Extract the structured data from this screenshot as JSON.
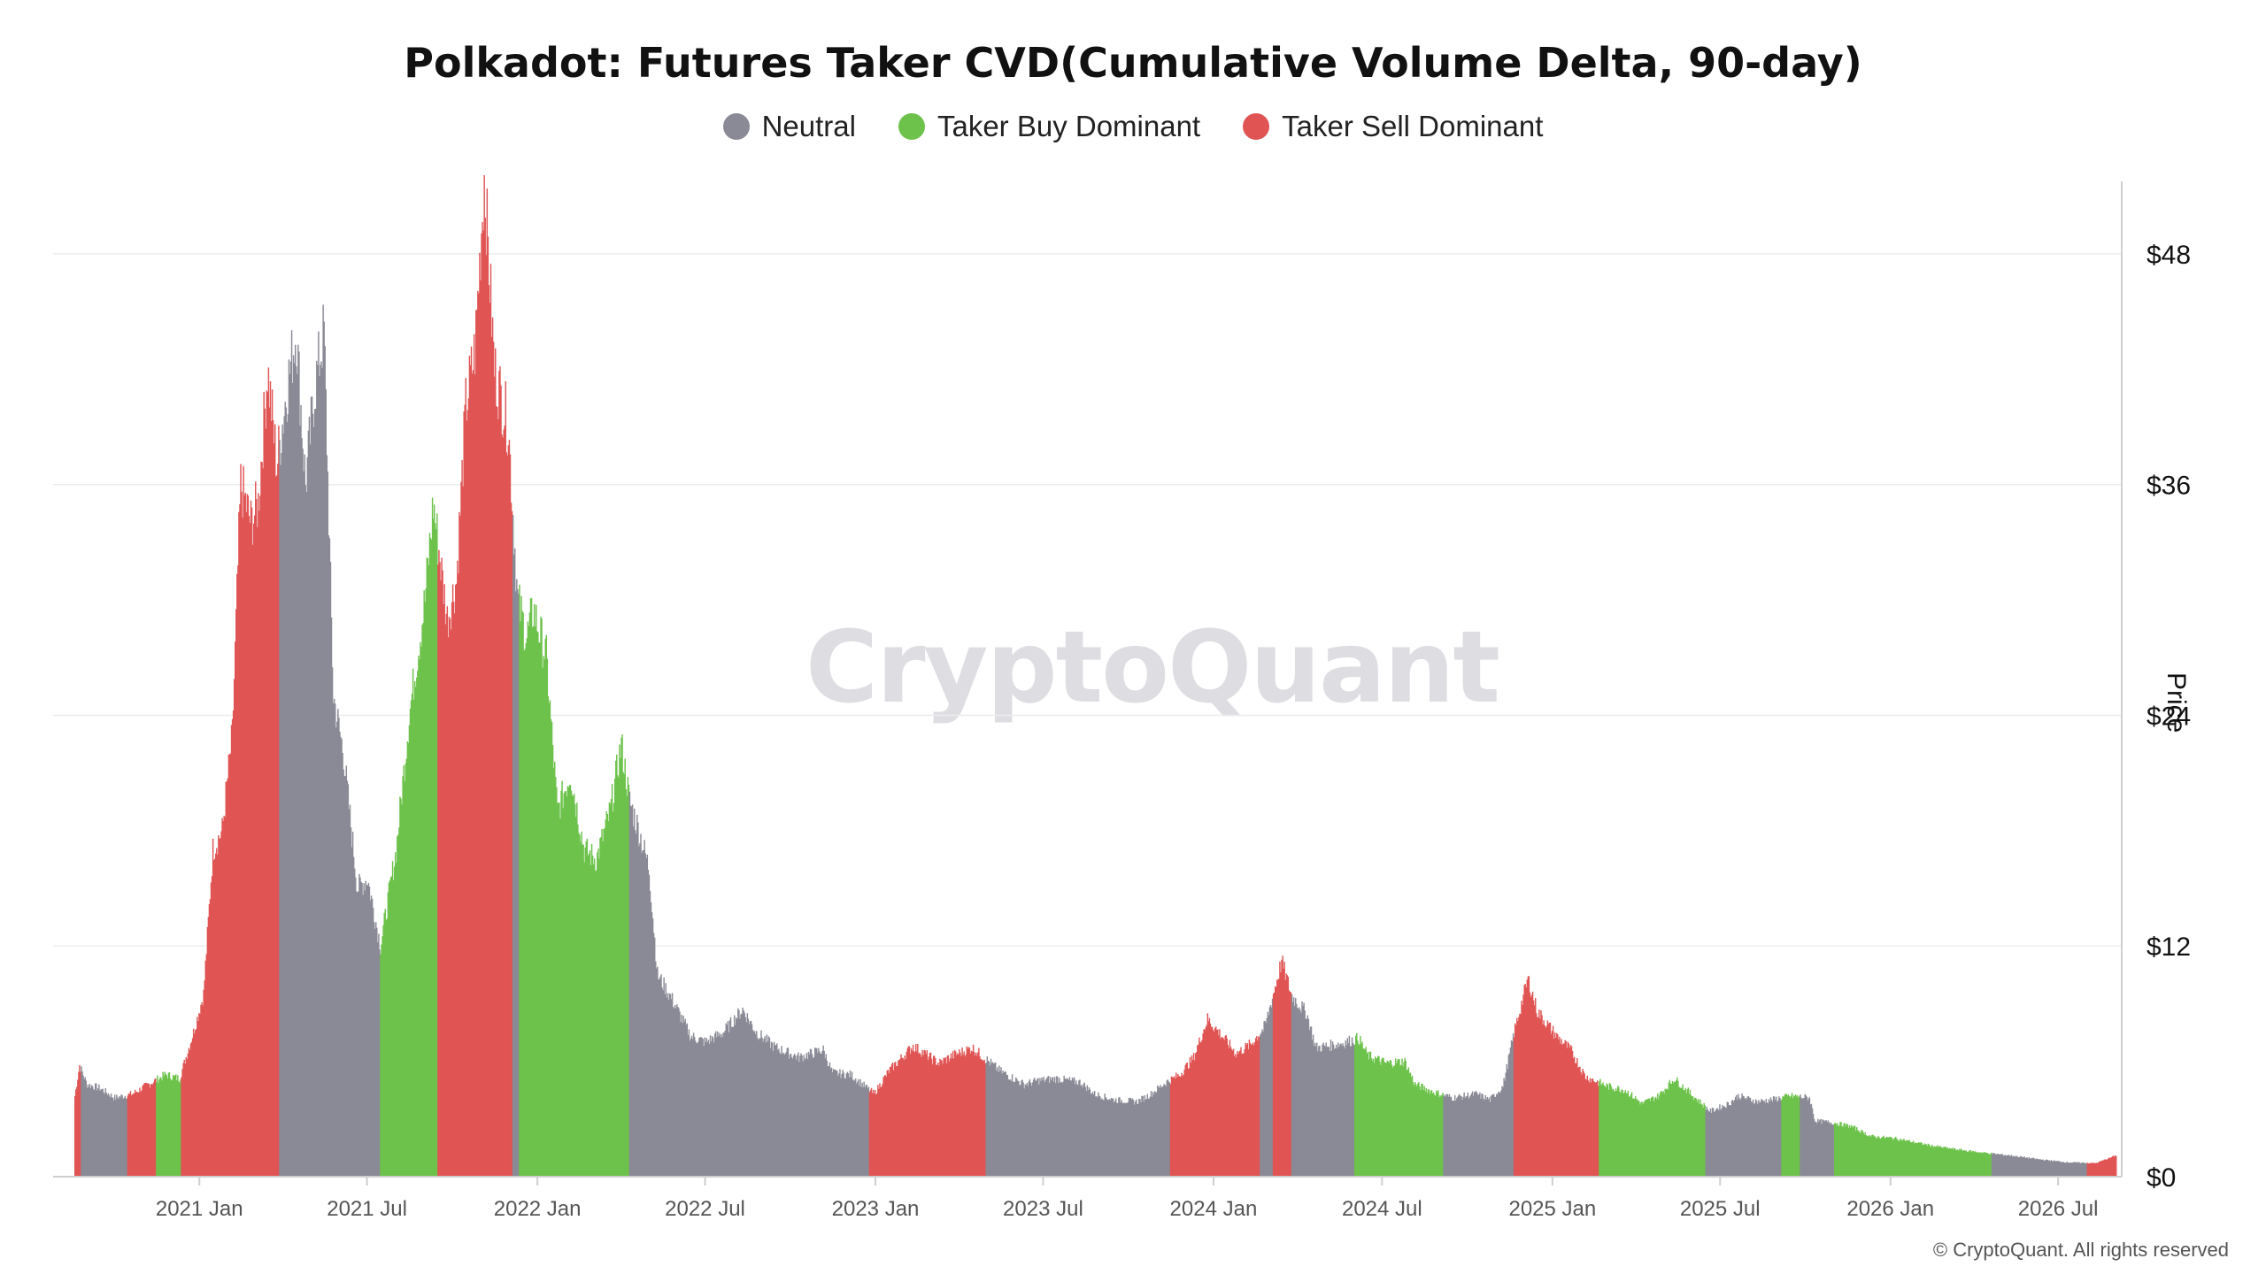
{
  "page": {
    "watermark": "CryptoQuant",
    "copyright": "© CryptoQuant. All rights reserved"
  },
  "legend": [
    {
      "label": "Neutral",
      "color": "#8a8a96"
    },
    {
      "label": "Taker Buy Dominant",
      "color": "#6cc24a"
    },
    {
      "label": "Taker Sell Dominant",
      "color": "#e05454"
    }
  ],
  "chart_data": {
    "type": "bar",
    "title": "Polkadot: Futures Taker CVD(Cumulative Volume Delta, 90-day)",
    "xlabel": "",
    "ylabel": "Price",
    "ylim": [
      0,
      52
    ],
    "yticks": [
      0,
      12,
      24,
      36,
      48
    ],
    "ytick_labels": [
      "$0",
      "$12",
      "$24",
      "$36",
      "$48"
    ],
    "x_range": [
      "2020-08-19",
      "2026-09-01"
    ],
    "xticks": [
      "2021-01-01",
      "2021-07-01",
      "2022-01-01",
      "2022-07-01",
      "2023-01-01",
      "2023-07-01",
      "2024-01-01",
      "2024-07-01",
      "2025-01-01",
      "2025-07-01",
      "2026-01-01",
      "2026-07-01"
    ],
    "xtick_labels": [
      "2021 Jan",
      "2021 Jul",
      "2022 Jan",
      "2022 Jul",
      "2023 Jan",
      "2023 Jul",
      "2024 Jan",
      "2024 Jul",
      "2025 Jan",
      "2025 Jul",
      "2026 Jan",
      "2026 Jul"
    ],
    "grid": true,
    "legend_position": "top-center",
    "series_colors": {
      "neutral": "#8a8a96",
      "buy": "#6cc24a",
      "sell": "#e05454"
    },
    "price_points": [
      [
        "2020-08-19",
        4.2
      ],
      [
        "2020-08-24",
        5.8
      ],
      [
        "2020-09-01",
        4.8
      ],
      [
        "2020-09-15",
        4.6
      ],
      [
        "2020-10-01",
        4.1
      ],
      [
        "2020-10-20",
        4.3
      ],
      [
        "2020-11-10",
        4.9
      ],
      [
        "2020-11-25",
        5.3
      ],
      [
        "2020-12-10",
        5.1
      ],
      [
        "2020-12-25",
        7.5
      ],
      [
        "2021-01-05",
        9.5
      ],
      [
        "2021-01-15",
        17.0
      ],
      [
        "2021-01-25",
        18.0
      ],
      [
        "2021-02-05",
        23.0
      ],
      [
        "2021-02-14",
        36.0
      ],
      [
        "2021-02-25",
        34.0
      ],
      [
        "2021-03-05",
        35.0
      ],
      [
        "2021-03-15",
        42.0
      ],
      [
        "2021-03-25",
        37.0
      ],
      [
        "2021-04-05",
        41.0
      ],
      [
        "2021-04-15",
        44.0
      ],
      [
        "2021-04-25",
        36.0
      ],
      [
        "2021-05-05",
        41.0
      ],
      [
        "2021-05-15",
        44.0
      ],
      [
        "2021-05-25",
        25.0
      ],
      [
        "2021-06-05",
        22.0
      ],
      [
        "2021-06-20",
        15.0
      ],
      [
        "2021-07-01",
        15.5
      ],
      [
        "2021-07-15",
        12.0
      ],
      [
        "2021-08-01",
        17.0
      ],
      [
        "2021-08-15",
        24.0
      ],
      [
        "2021-09-01",
        30.0
      ],
      [
        "2021-09-10",
        35.0
      ],
      [
        "2021-09-25",
        29.0
      ],
      [
        "2021-10-05",
        31.0
      ],
      [
        "2021-10-15",
        40.0
      ],
      [
        "2021-10-25",
        43.0
      ],
      [
        "2021-11-04",
        52.0
      ],
      [
        "2021-11-15",
        42.0
      ],
      [
        "2021-11-30",
        39.0
      ],
      [
        "2021-12-10",
        30.0
      ],
      [
        "2021-12-20",
        28.0
      ],
      [
        "2021-12-27",
        29.5
      ],
      [
        "2022-01-10",
        27.0
      ],
      [
        "2022-01-22",
        19.0
      ],
      [
        "2022-02-05",
        21.0
      ],
      [
        "2022-02-20",
        17.0
      ],
      [
        "2022-03-05",
        16.5
      ],
      [
        "2022-03-20",
        19.0
      ],
      [
        "2022-04-01",
        22.5
      ],
      [
        "2022-04-10",
        19.5
      ],
      [
        "2022-04-20",
        18.0
      ],
      [
        "2022-05-01",
        16.0
      ],
      [
        "2022-05-10",
        10.5
      ],
      [
        "2022-05-25",
        9.3
      ],
      [
        "2022-06-15",
        7.3
      ],
      [
        "2022-07-01",
        7.0
      ],
      [
        "2022-07-20",
        7.5
      ],
      [
        "2022-08-10",
        8.7
      ],
      [
        "2022-08-25",
        7.5
      ],
      [
        "2022-09-15",
        6.7
      ],
      [
        "2022-10-10",
        6.2
      ],
      [
        "2022-11-05",
        6.6
      ],
      [
        "2022-11-15",
        5.4
      ],
      [
        "2022-12-05",
        5.3
      ],
      [
        "2022-12-30",
        4.3
      ],
      [
        "2023-01-15",
        5.5
      ],
      [
        "2023-02-10",
        6.8
      ],
      [
        "2023-03-10",
        5.9
      ],
      [
        "2023-03-25",
        6.3
      ],
      [
        "2023-04-15",
        6.7
      ],
      [
        "2023-05-15",
        5.5
      ],
      [
        "2023-06-10",
        4.8
      ],
      [
        "2023-06-25",
        5.0
      ],
      [
        "2023-07-15",
        5.1
      ],
      [
        "2023-08-10",
        4.9
      ],
      [
        "2023-08-25",
        4.3
      ],
      [
        "2023-09-15",
        4.0
      ],
      [
        "2023-10-10",
        3.9
      ],
      [
        "2023-10-25",
        4.3
      ],
      [
        "2023-11-10",
        4.9
      ],
      [
        "2023-11-25",
        5.3
      ],
      [
        "2023-12-10",
        6.2
      ],
      [
        "2023-12-25",
        8.2
      ],
      [
        "2024-01-10",
        7.3
      ],
      [
        "2024-01-25",
        6.4
      ],
      [
        "2024-02-10",
        6.9
      ],
      [
        "2024-02-25",
        7.8
      ],
      [
        "2024-03-05",
        9.5
      ],
      [
        "2024-03-14",
        11.2
      ],
      [
        "2024-03-25",
        9.4
      ],
      [
        "2024-04-10",
        8.5
      ],
      [
        "2024-04-20",
        6.7
      ],
      [
        "2024-05-15",
        6.9
      ],
      [
        "2024-06-05",
        7.2
      ],
      [
        "2024-06-15",
        6.3
      ],
      [
        "2024-07-05",
        5.9
      ],
      [
        "2024-07-25",
        6.0
      ],
      [
        "2024-08-05",
        4.8
      ],
      [
        "2024-08-25",
        4.4
      ],
      [
        "2024-09-15",
        4.1
      ],
      [
        "2024-10-10",
        4.3
      ],
      [
        "2024-10-25",
        4.0
      ],
      [
        "2024-11-08",
        4.7
      ],
      [
        "2024-11-20",
        7.5
      ],
      [
        "2024-12-05",
        10.3
      ],
      [
        "2024-12-15",
        8.6
      ],
      [
        "2025-01-05",
        7.3
      ],
      [
        "2025-01-20",
        6.6
      ],
      [
        "2025-02-05",
        5.2
      ],
      [
        "2025-03-01",
        4.7
      ],
      [
        "2025-03-20",
        4.5
      ],
      [
        "2025-04-07",
        3.8
      ],
      [
        "2025-04-25",
        4.2
      ],
      [
        "2025-05-12",
        5.1
      ],
      [
        "2025-05-30",
        4.3
      ],
      [
        "2025-06-20",
        3.4
      ],
      [
        "2025-07-10",
        3.8
      ],
      [
        "2025-07-20",
        4.2
      ],
      [
        "2025-08-10",
        3.9
      ],
      [
        "2025-08-25",
        4.0
      ],
      [
        "2025-09-15",
        4.2
      ],
      [
        "2025-10-05",
        4.1
      ],
      [
        "2025-10-11",
        2.9
      ],
      [
        "2025-11-01",
        2.8
      ],
      [
        "2025-11-20",
        2.6
      ],
      [
        "2025-12-10",
        2.1
      ],
      [
        "2026-01-05",
        2.0
      ],
      [
        "2026-01-25",
        1.8
      ],
      [
        "2026-02-15",
        1.6
      ],
      [
        "2026-03-15",
        1.4
      ],
      [
        "2026-04-10",
        1.25
      ],
      [
        "2026-05-10",
        1.1
      ],
      [
        "2026-06-10",
        0.9
      ],
      [
        "2026-07-10",
        0.75
      ],
      [
        "2026-08-10",
        0.7
      ],
      [
        "2026-09-01",
        1.1
      ]
    ],
    "regimes": [
      {
        "start": "2020-08-19",
        "end": "2020-08-26",
        "state": "sell"
      },
      {
        "start": "2020-08-26",
        "end": "2020-10-15",
        "state": "neutral"
      },
      {
        "start": "2020-10-15",
        "end": "2020-11-15",
        "state": "sell"
      },
      {
        "start": "2020-11-15",
        "end": "2020-12-12",
        "state": "buy"
      },
      {
        "start": "2020-12-12",
        "end": "2021-03-28",
        "state": "sell"
      },
      {
        "start": "2021-03-28",
        "end": "2021-07-15",
        "state": "neutral"
      },
      {
        "start": "2021-07-15",
        "end": "2021-09-15",
        "state": "buy"
      },
      {
        "start": "2021-09-15",
        "end": "2021-12-05",
        "state": "sell"
      },
      {
        "start": "2021-12-05",
        "end": "2021-12-12",
        "state": "neutral"
      },
      {
        "start": "2021-12-12",
        "end": "2022-04-10",
        "state": "buy"
      },
      {
        "start": "2022-04-10",
        "end": "2022-12-25",
        "state": "neutral"
      },
      {
        "start": "2022-12-25",
        "end": "2023-04-30",
        "state": "sell"
      },
      {
        "start": "2023-04-30",
        "end": "2023-11-15",
        "state": "neutral"
      },
      {
        "start": "2023-11-15",
        "end": "2024-02-20",
        "state": "sell"
      },
      {
        "start": "2024-02-20",
        "end": "2024-03-05",
        "state": "neutral"
      },
      {
        "start": "2024-03-05",
        "end": "2024-03-25",
        "state": "sell"
      },
      {
        "start": "2024-03-25",
        "end": "2024-06-01",
        "state": "neutral"
      },
      {
        "start": "2024-06-01",
        "end": "2024-09-05",
        "state": "buy"
      },
      {
        "start": "2024-09-05",
        "end": "2024-11-20",
        "state": "neutral"
      },
      {
        "start": "2024-11-20",
        "end": "2025-02-20",
        "state": "sell"
      },
      {
        "start": "2025-02-20",
        "end": "2025-06-15",
        "state": "buy"
      },
      {
        "start": "2025-06-15",
        "end": "2025-09-05",
        "state": "neutral"
      },
      {
        "start": "2025-09-05",
        "end": "2025-09-25",
        "state": "buy"
      },
      {
        "start": "2025-09-25",
        "end": "2025-11-01",
        "state": "neutral"
      },
      {
        "start": "2025-11-01",
        "end": "2026-04-20",
        "state": "buy"
      },
      {
        "start": "2026-04-20",
        "end": "2026-08-01",
        "state": "neutral"
      },
      {
        "start": "2026-08-01",
        "end": "2026-09-01",
        "state": "sell"
      }
    ]
  }
}
